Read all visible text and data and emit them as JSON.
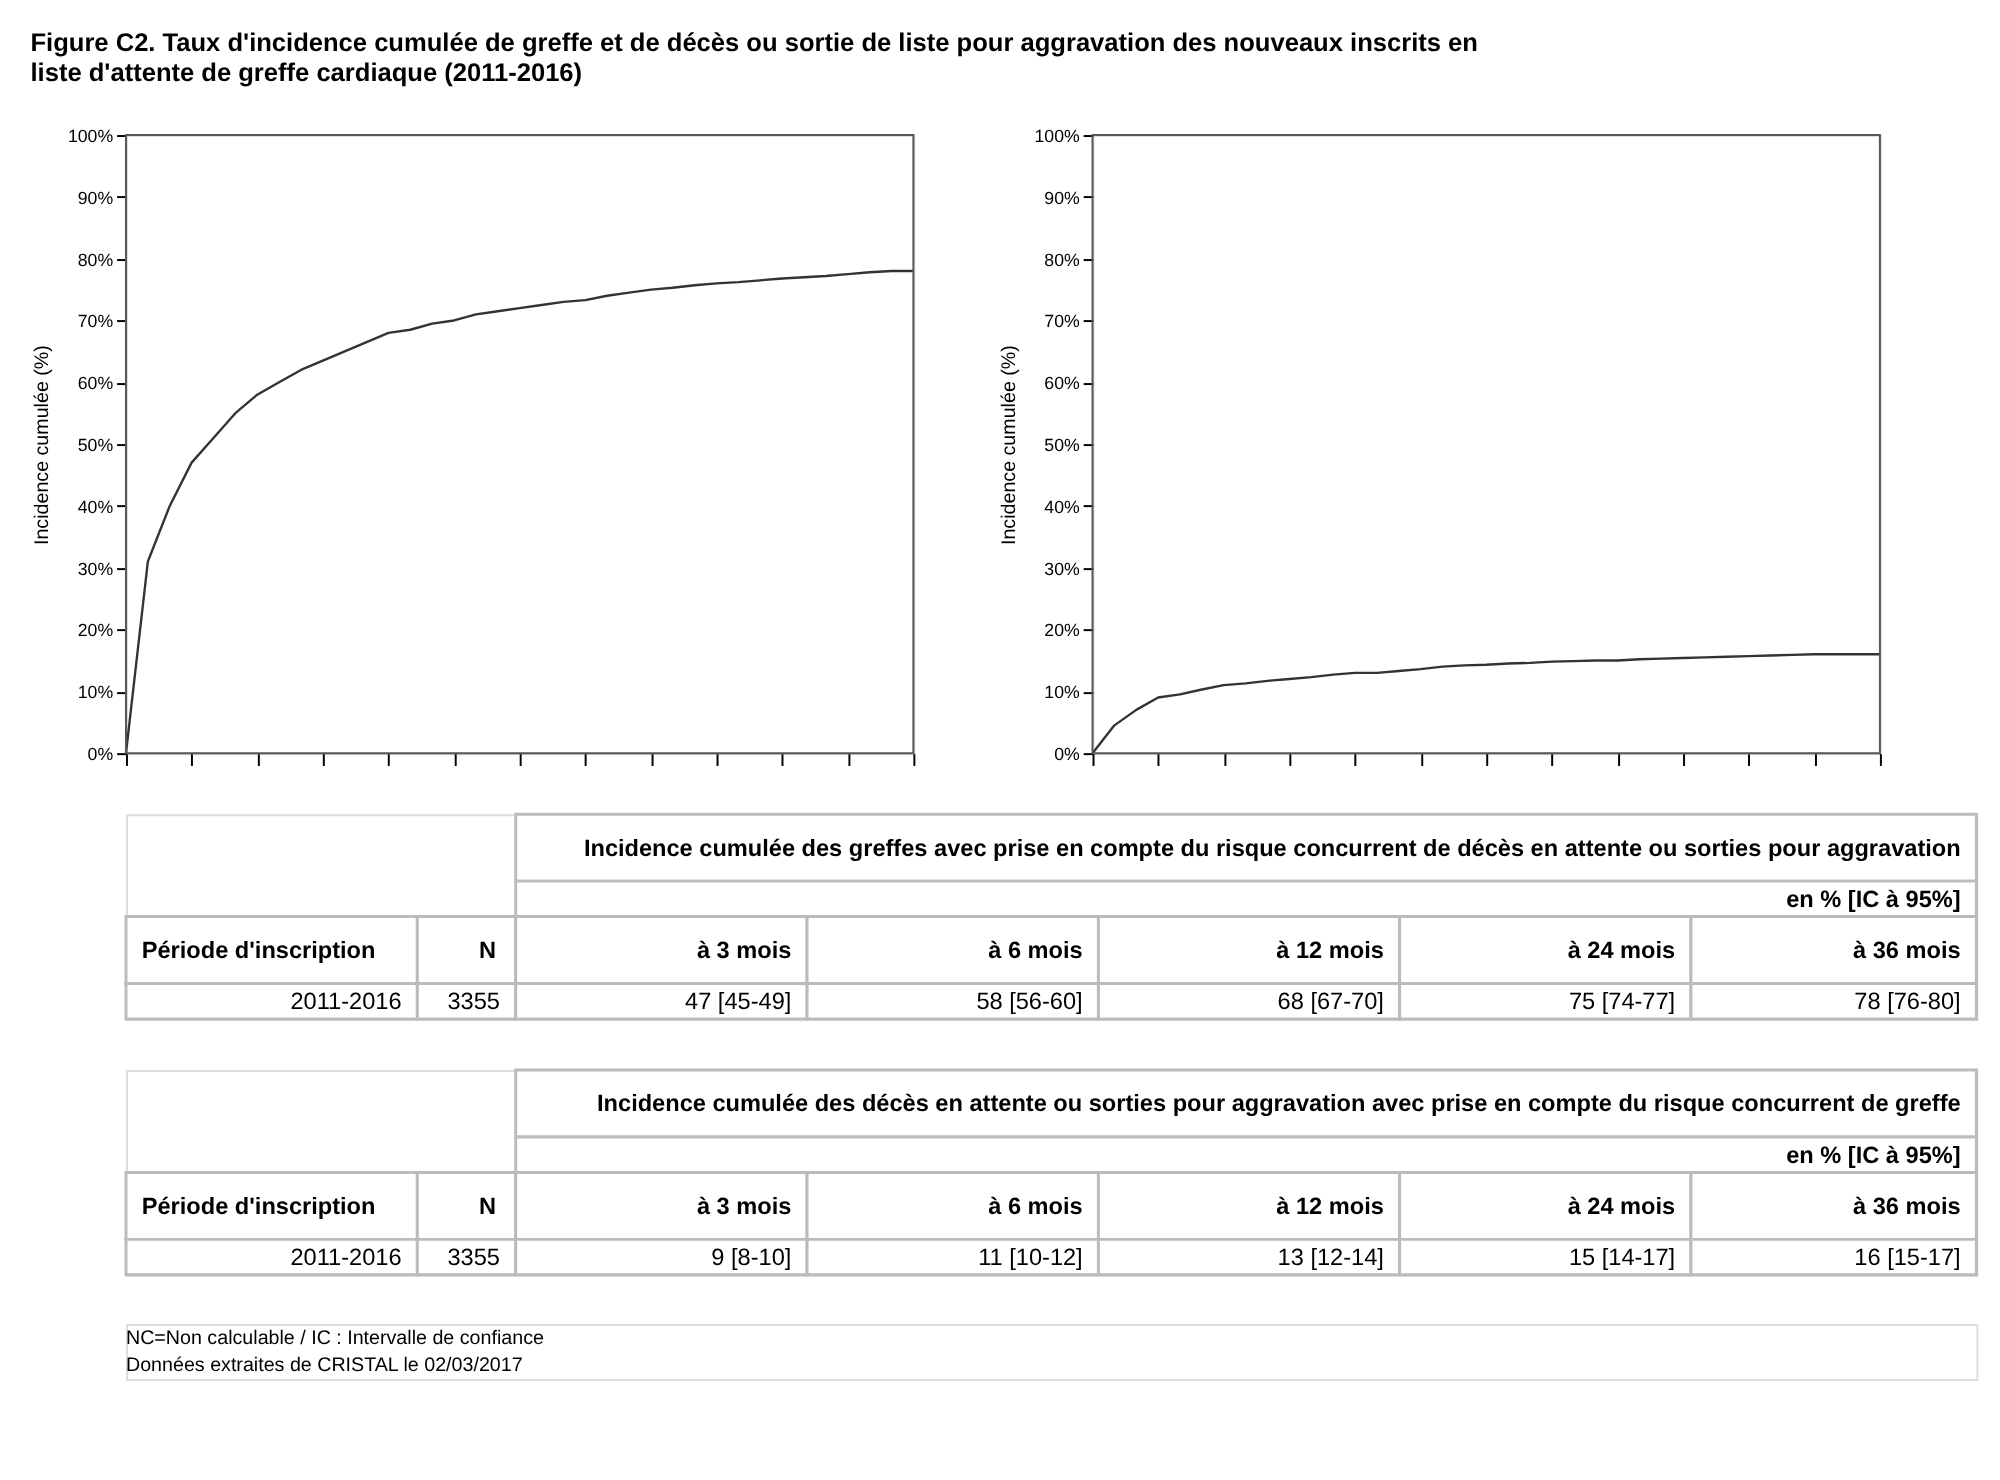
{
  "chart_data": [
    {
      "type": "line",
      "title": "Figure C2. Taux d'incidence cumulée de greffe et de décès ou sortie de liste pour aggravation des nouveaux inscrits en liste d'attente de greffe cardiaque (2011-2016)",
      "ylabel": "Incidence cumulée (%)",
      "categories": [
        null,
        null,
        null,
        null,
        null,
        null,
        null,
        null,
        null,
        null,
        null,
        null,
        null,
        null,
        null,
        null,
        null,
        null,
        null,
        null,
        null,
        null,
        null,
        null,
        null,
        null,
        null,
        null,
        null,
        null,
        null,
        null,
        null,
        null,
        null,
        null,
        null
      ],
      "values": [
        0,
        31,
        40,
        47,
        51,
        55,
        58,
        60,
        62,
        63.5,
        65,
        66.5,
        68,
        68.5,
        69.5,
        70,
        71,
        71.5,
        72,
        72.5,
        73,
        73.3,
        74,
        74.5,
        75,
        75.3,
        75.7,
        76,
        76.2,
        76.5,
        76.8,
        77,
        77.2,
        77.5,
        77.8,
        78,
        78
      ],
      "color": "#333333",
      "ylim": [
        0,
        100
      ],
      "yticks": [
        {
          "value": 0,
          "label": "0%"
        },
        {
          "value": 10,
          "label": "10%"
        },
        {
          "value": 20,
          "label": "20%"
        },
        {
          "value": 30,
          "label": "30%"
        },
        {
          "value": 40,
          "label": "40%"
        },
        {
          "value": 50,
          "label": "50%"
        },
        {
          "value": 60,
          "label": "60%"
        },
        {
          "value": 70,
          "label": "70%"
        },
        {
          "value": 80,
          "label": "80%"
        },
        {
          "value": 90,
          "label": "90%"
        },
        {
          "value": 100,
          "label": "100%"
        }
      ],
      "tick_labels": "y",
      "annotations": [
        "Incidence cumulée des greffes avec prise en compte du risque concurrent de décès en attente ou sorties pour aggravation",
        "en % [IC à 95%]",
        "Période d'inscription",
        "N",
        "à 3 mois",
        "à 6 mois",
        "à 12 mois",
        "à 24 mois",
        "à 36 mois",
        "2011-2016",
        "3355",
        "47 [45-49]",
        "58 [56-60]",
        "68 [67-70]",
        "75 [74-77]",
        "78 [76-80]",
        "NC=Non calculable / IC : Intervalle de confiance",
        "Données extraites de CRISTAL le 02/03/2017"
      ]
    },
    {
      "type": "line",
      "ylabel": "Incidence cumulée (%)",
      "categories": [
        null,
        null,
        null,
        null,
        null,
        null,
        null,
        null,
        null,
        null,
        null,
        null,
        null,
        null,
        null,
        null,
        null,
        null,
        null,
        null,
        null,
        null,
        null,
        null,
        null,
        null,
        null,
        null,
        null,
        null,
        null,
        null,
        null,
        null,
        null,
        null,
        null
      ],
      "values": [
        0,
        4.5,
        7,
        9,
        9.5,
        10.3,
        11,
        11.3,
        11.7,
        12,
        12.3,
        12.7,
        13,
        13,
        13.3,
        13.6,
        14,
        14.2,
        14.3,
        14.5,
        14.6,
        14.8,
        14.9,
        15,
        15,
        15.2,
        15.3,
        15.4,
        15.5,
        15.6,
        15.7,
        15.8,
        15.9,
        16,
        16,
        16,
        16
      ],
      "color": "#333333",
      "ylim": [
        0,
        100
      ],
      "yticks": [
        {
          "value": 0,
          "label": "0%"
        },
        {
          "value": 10,
          "label": "10%"
        },
        {
          "value": 20,
          "label": "20%"
        },
        {
          "value": 30,
          "label": "30%"
        },
        {
          "value": 40,
          "label": "40%"
        },
        {
          "value": 50,
          "label": "50%"
        },
        {
          "value": 60,
          "label": "60%"
        },
        {
          "value": 70,
          "label": "70%"
        },
        {
          "value": 80,
          "label": "80%"
        },
        {
          "value": 90,
          "label": "90%"
        },
        {
          "value": 100,
          "label": "100%"
        }
      ],
      "tick_labels": "y",
      "annotations": [
        "Incidence cumulée des décès en attente ou sorties pour aggravation avec prise en compte du risque concurrent de greffe",
        "en % [IC à 95%]",
        "Période d'inscription",
        "N",
        "à 3 mois",
        "à 6 mois",
        "à 12 mois",
        "à 24 mois",
        "à 36 mois",
        "2011-2016",
        "3355",
        "9 [8-10]",
        "11 [10-12]",
        "13 [12-14]",
        "15 [14-17]",
        "16 [15-17]"
      ]
    }
  ]
}
